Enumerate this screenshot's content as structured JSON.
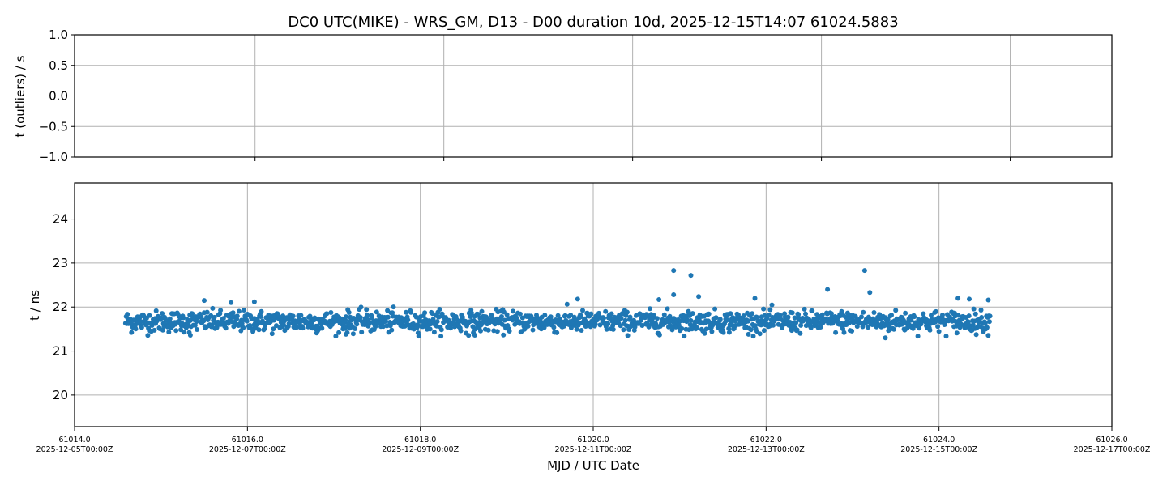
{
  "chart_data": [
    {
      "type": "scatter",
      "panel": "top",
      "title": "DC0 UTC(MIKE) - WRS_GM, D13 - D00 duration 10d, 2025-12-15T14:07 61024.5883",
      "ylabel": "t (outliers) / s",
      "ylim": [
        -1.0,
        1.0
      ],
      "yticks": [
        "1.0",
        "0.5",
        "0.0",
        "−0.5",
        "−1.0"
      ],
      "ytick_values": [
        1.0,
        0.5,
        0.0,
        -0.5,
        -1.0
      ],
      "xtick_fractions": [
        0.174,
        0.356,
        0.538,
        0.72,
        0.902
      ],
      "grid": true,
      "points": []
    },
    {
      "type": "scatter",
      "panel": "bottom",
      "xlabel": "MJD / UTC Date",
      "ylabel": "t / ns",
      "xlim": [
        61014.0,
        61026.0
      ],
      "ylim": [
        19.28,
        24.82
      ],
      "xticks": [
        {
          "value": 61014.0,
          "mjd": "61014.0",
          "date": "2025-12-05T00:00Z"
        },
        {
          "value": 61016.0,
          "mjd": "61016.0",
          "date": "2025-12-07T00:00Z"
        },
        {
          "value": 61018.0,
          "mjd": "61018.0",
          "date": "2025-12-09T00:00Z"
        },
        {
          "value": 61020.0,
          "mjd": "61020.0",
          "date": "2025-12-11T00:00Z"
        },
        {
          "value": 61022.0,
          "mjd": "61022.0",
          "date": "2025-12-13T00:00Z"
        },
        {
          "value": 61024.0,
          "mjd": "61024.0",
          "date": "2025-12-15T00:00Z"
        },
        {
          "value": 61026.0,
          "mjd": "61026.0",
          "date": "2025-12-17T00:00Z"
        }
      ],
      "yticks": [
        {
          "value": 20,
          "label": "20"
        },
        {
          "value": 21,
          "label": "21"
        },
        {
          "value": 22,
          "label": "22"
        },
        {
          "value": 23,
          "label": "23"
        },
        {
          "value": 24,
          "label": "24"
        }
      ],
      "grid": true,
      "color": "#1f77b4",
      "bulk_series": {
        "x_start": 61014.59,
        "x_end": 61024.59,
        "n_points": 1440,
        "mean": 21.67,
        "std": 0.12
      },
      "outliers": [
        [
          61020.93,
          22.83
        ],
        [
          61021.13,
          22.72
        ],
        [
          61023.14,
          22.83
        ],
        [
          61023.2,
          22.33
        ],
        [
          61020.93,
          22.28
        ],
        [
          61021.22,
          22.24
        ],
        [
          61022.71,
          22.4
        ],
        [
          61023.38,
          21.3
        ],
        [
          61015.5,
          22.15
        ],
        [
          61015.34,
          21.36
        ],
        [
          61019.82,
          22.18
        ],
        [
          61021.87,
          22.2
        ],
        [
          61024.22,
          22.2
        ],
        [
          61024.57,
          22.16
        ],
        [
          61018.63,
          21.36
        ],
        [
          61017.14,
          21.38
        ],
        [
          61015.81,
          22.1
        ],
        [
          61016.08,
          22.12
        ],
        [
          61020.76,
          22.17
        ],
        [
          61024.35,
          22.18
        ]
      ]
    }
  ]
}
